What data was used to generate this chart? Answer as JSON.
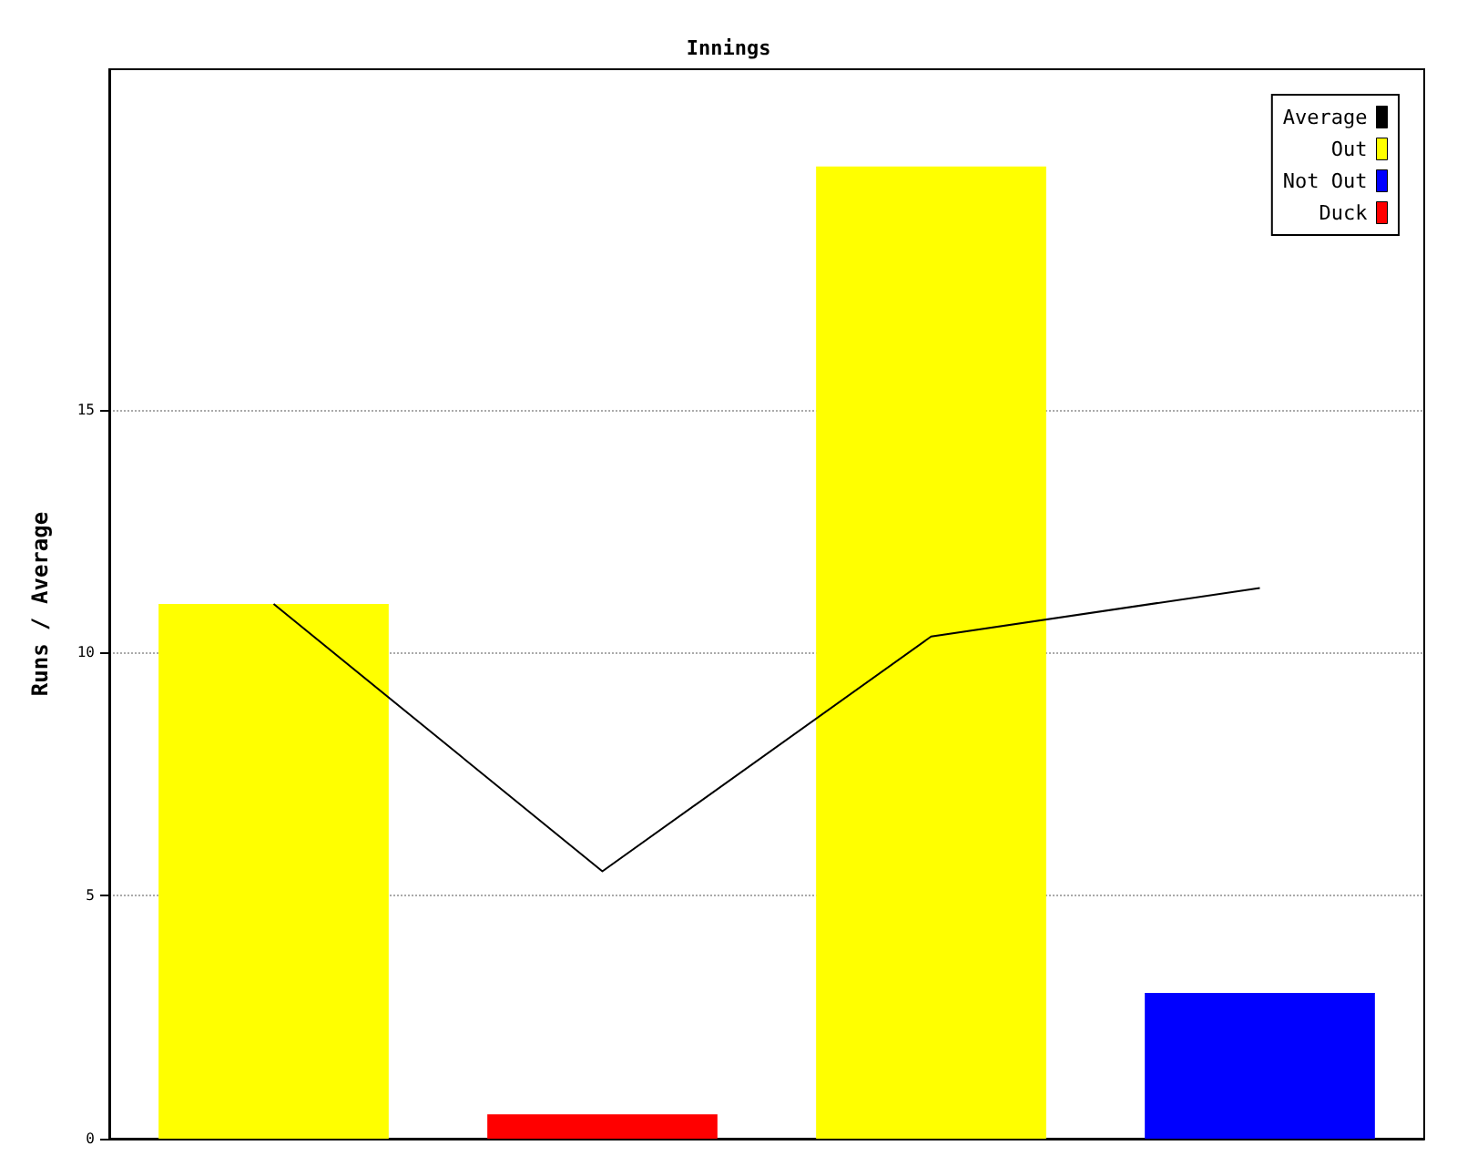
{
  "chart_data": {
    "type": "bar",
    "title": "Innings",
    "ylabel": "Runs / Average",
    "categories": [
      null,
      null,
      null,
      null
    ],
    "series": [
      {
        "name": "Average",
        "type": "line",
        "color": "#000000",
        "values": [
          11,
          5.5,
          10.33,
          11.33
        ]
      },
      {
        "name": "Out",
        "color": "#ffff00",
        "values": [
          11,
          null,
          20,
          null
        ]
      },
      {
        "name": "Not Out",
        "color": "#0000ff",
        "values": [
          null,
          null,
          null,
          3
        ]
      },
      {
        "name": "Duck",
        "color": "#ff0000",
        "values": [
          null,
          0.5,
          null,
          null
        ]
      }
    ],
    "ylim": [
      0,
      22
    ],
    "yticks": [
      0,
      5,
      10,
      15
    ],
    "grid": "y",
    "legend": "top right",
    "tick_labels": "y",
    "marker": "none"
  }
}
